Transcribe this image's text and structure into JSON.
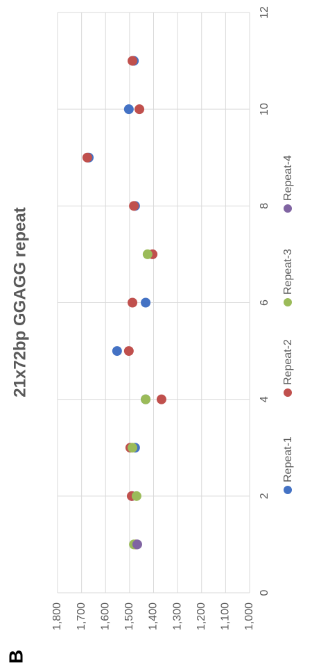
{
  "panel_label": "B",
  "chart_data": {
    "type": "scatter",
    "title": "21x72bp GGAGG repeat",
    "x": [
      1,
      2,
      3,
      4,
      5,
      6,
      7,
      8,
      9,
      10,
      11
    ],
    "series": [
      {
        "name": "Repeat-1",
        "color": "#4472c4",
        "values": [
          1470,
          1490,
          1477,
          1433,
          1552,
          1433,
          null,
          1477,
          1670,
          1503,
          1482
        ]
      },
      {
        "name": "Repeat-2",
        "color": "#c0504d",
        "values": [
          1475,
          1491,
          1497,
          1367,
          1503,
          1488,
          1404,
          1482,
          1676,
          1459,
          1488
        ]
      },
      {
        "name": "Repeat-3",
        "color": "#9bbb59",
        "values": [
          1482,
          1471,
          1488,
          1433,
          null,
          null,
          1425,
          null,
          null,
          null,
          null
        ]
      },
      {
        "name": "Repeat-4",
        "color": "#8064a2",
        "values": [
          1468,
          null,
          null,
          null,
          null,
          null,
          null,
          null,
          null,
          null,
          null
        ]
      }
    ],
    "xlim": [
      0,
      12
    ],
    "xticks": [
      0,
      2,
      4,
      6,
      8,
      10,
      12
    ],
    "ylim": [
      1000,
      1800
    ],
    "yticks": [
      {
        "value": 1000,
        "label": "1,000"
      },
      {
        "value": 1100,
        "label": "1,100"
      },
      {
        "value": 1200,
        "label": "1,200"
      },
      {
        "value": 1300,
        "label": "1,300"
      },
      {
        "value": 1400,
        "label": "1,400"
      },
      {
        "value": 1500,
        "label": "1,500"
      },
      {
        "value": 1600,
        "label": "1,600"
      },
      {
        "value": 1700,
        "label": "1,700"
      },
      {
        "value": 1800,
        "label": "1,800"
      }
    ],
    "grid": true,
    "legend": "bottom"
  }
}
